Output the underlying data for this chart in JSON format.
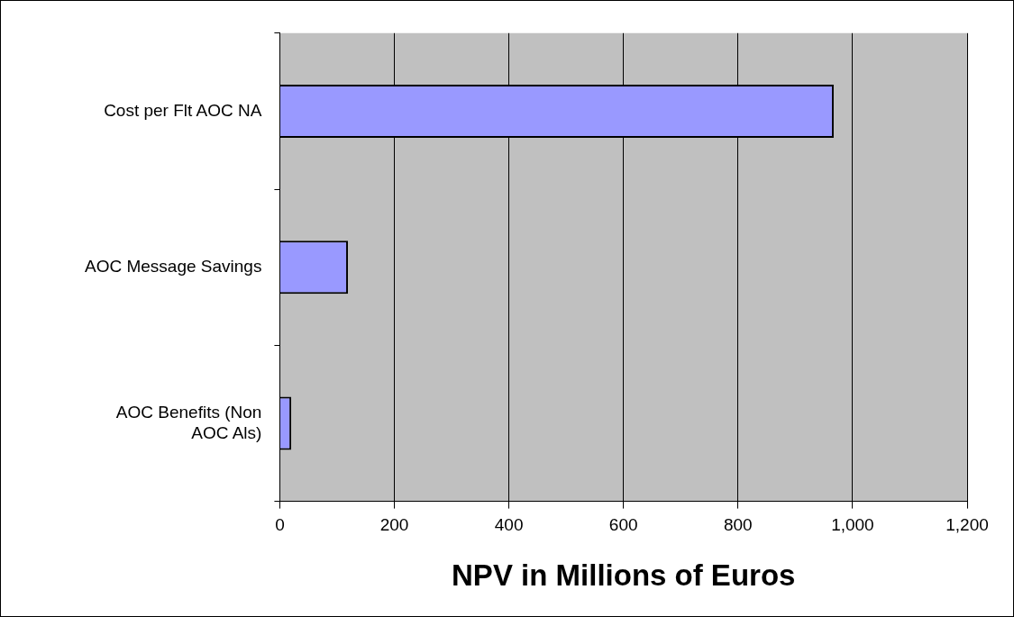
{
  "chart_data": {
    "type": "bar",
    "orientation": "horizontal",
    "xlabel": "NPV in Millions of Euros",
    "categories": [
      "Cost per Flt AOC NA",
      "AOC Message Savings",
      "AOC Benefits (Non AOC Als)"
    ],
    "values": [
      967,
      119,
      20
    ],
    "color": "#9999ff",
    "xlim": [
      0,
      1200
    ],
    "xticks": [
      0,
      200,
      400,
      600,
      800,
      {
        "value": 1000,
        "label": "1,000"
      },
      {
        "value": 1200,
        "label": "1,200"
      }
    ],
    "grid": "x",
    "legend": false
  }
}
